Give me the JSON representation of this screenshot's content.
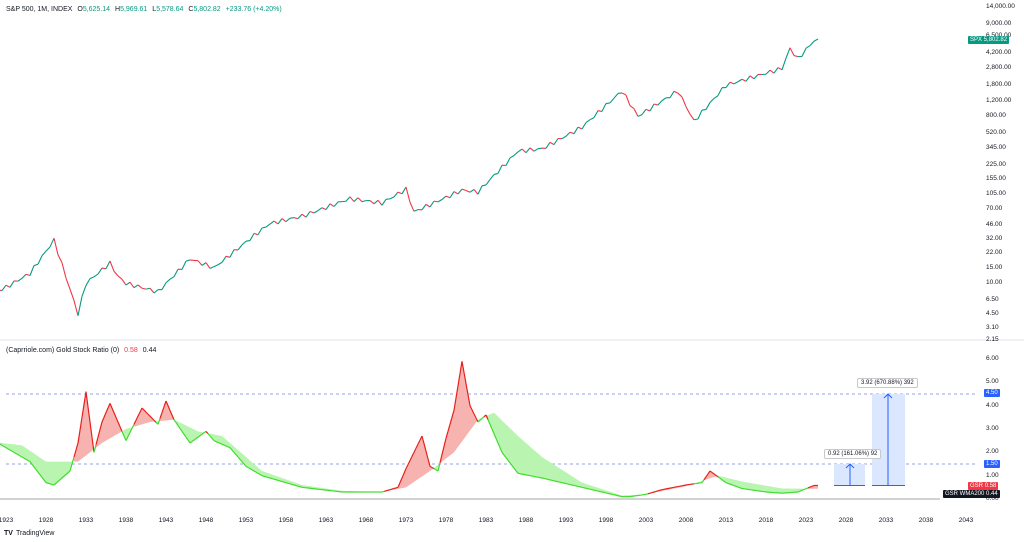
{
  "top_chart": {
    "symbol": "S&P 500, 1M, INDEX",
    "open_label": "O",
    "open": "5,625.14",
    "high_label": "H",
    "high": "5,969.61",
    "low_label": "L",
    "low": "5,578.64",
    "close_label": "C",
    "close": "5,802.82",
    "change": "+233.76 (+4.20%)",
    "price_tag_symbol": "SPX",
    "price_tag_value": "5,802.82",
    "y_ticks": [
      "14,000.00",
      "9,000.00",
      "6,500.00",
      "4,200.00",
      "2,800.00",
      "1,800.00",
      "1,200.00",
      "800.00",
      "520.00",
      "345.00",
      "225.00",
      "155.00",
      "105.00",
      "70.00",
      "46.00",
      "32.00",
      "22.00",
      "15.00",
      "10.00",
      "6.50",
      "4.50",
      "3.10"
    ]
  },
  "bottom_chart": {
    "title": "(Caprriole.com) Gold Stock Ratio (0)",
    "value1": "0.58",
    "value2": "0.44",
    "y_ticks": [
      "6.00",
      "5.00",
      "4.00",
      "3.00",
      "2.00",
      "1.00",
      "0.00"
    ],
    "y_tick_top": "2.15",
    "tag_level_high": "4.50",
    "tag_level_low": "1.50",
    "tag_gsr_label": "GSR",
    "tag_gsr_value": "0.58",
    "tag_wma_label": "GSR WMA200",
    "tag_wma_value": "0.44",
    "measure_small": "0.92 (161.06%) 92",
    "measure_large": "3.92 (670.88%) 392"
  },
  "x_axis": [
    "1923",
    "1928",
    "1933",
    "1938",
    "1943",
    "1948",
    "1953",
    "1958",
    "1963",
    "1968",
    "1973",
    "1978",
    "1983",
    "1988",
    "1993",
    "1998",
    "2003",
    "2008",
    "2013",
    "2018",
    "2023",
    "2028",
    "2033",
    "2038",
    "2043"
  ],
  "brand": "TradingView",
  "colors": {
    "up": "#089981",
    "down": "#f23645",
    "green_line": "#3fdc2c",
    "red_line": "#e8201a",
    "green_fill": "#b9f5b0",
    "red_fill": "#f7b3b0",
    "measure_blue": "#2962ff",
    "dash_line": "#7a83e6"
  },
  "chart_data": [
    {
      "type": "line",
      "title": "S&P 500, 1M, INDEX",
      "yscale": "log",
      "ylim": [
        3.1,
        14000
      ],
      "series": [
        {
          "name": "SPX",
          "x": [
            1920,
            1923,
            1926,
            1929,
            1932,
            1933,
            1936,
            1937,
            1938,
            1942,
            1946,
            1949,
            1954,
            1956,
            1960,
            1966,
            1970,
            1973,
            1974,
            1980,
            1982,
            1987,
            1990,
            1995,
            2000,
            2002,
            2007,
            2009,
            2013,
            2020,
            2021,
            2022,
            2024
          ],
          "values": [
            7,
            9,
            13,
            31,
            4.5,
            10,
            17,
            12,
            10,
            8,
            19,
            15,
            35,
            48,
            58,
            92,
            82,
            118,
            65,
            115,
            110,
            320,
            340,
            600,
            1550,
            800,
            1550,
            700,
            1800,
            2800,
            4700,
            3600,
            5800
          ]
        }
      ]
    },
    {
      "type": "line",
      "title": "(Caprriole.com) Gold Stock Ratio (0)",
      "ylim": [
        0,
        6.3
      ],
      "series": [
        {
          "name": "GSR",
          "x": [
            1920,
            1923,
            1926,
            1928,
            1929,
            1931,
            1932,
            1933,
            1934,
            1935,
            1936,
            1938,
            1940,
            1942,
            1943,
            1944,
            1946,
            1948,
            1949,
            1951,
            1953,
            1955,
            1960,
            1965,
            1970,
            1972,
            1973,
            1974,
            1975,
            1976,
            1977,
            1978,
            1979,
            1980,
            1981,
            1982,
            1983,
            1985,
            1987,
            1990,
            1995,
            2000,
            2001,
            2003,
            2005,
            2008,
            2010,
            2011,
            2012,
            2013,
            2015,
            2018,
            2020,
            2022,
            2024
          ],
          "values": [
            2.8,
            2.2,
            1.6,
            0.7,
            0.6,
            1.2,
            2.4,
            4.6,
            2.0,
            3.3,
            4.1,
            2.5,
            3.9,
            3.2,
            4.2,
            3.4,
            2.4,
            2.9,
            2.5,
            2.2,
            1.4,
            1.0,
            0.5,
            0.3,
            0.3,
            0.5,
            1.3,
            2.0,
            2.7,
            1.4,
            1.2,
            2.6,
            3.8,
            5.9,
            4.0,
            3.3,
            3.6,
            2.0,
            1.1,
            0.9,
            0.5,
            0.1,
            0.1,
            0.2,
            0.4,
            0.6,
            0.7,
            1.2,
            0.95,
            0.7,
            0.45,
            0.3,
            0.25,
            0.3,
            0.58
          ]
        },
        {
          "name": "GSR WMA200",
          "x": [
            1920,
            1925,
            1928,
            1932,
            1935,
            1938,
            1941,
            1944,
            1947,
            1950,
            1955,
            1960,
            1965,
            1970,
            1973,
            1976,
            1979,
            1982,
            1984,
            1987,
            1990,
            1995,
            2000,
            2003,
            2008,
            2012,
            2015,
            2020,
            2024
          ],
          "values": [
            2.5,
            2.3,
            1.6,
            1.6,
            2.4,
            3.0,
            3.3,
            3.4,
            2.9,
            2.7,
            1.2,
            0.6,
            0.35,
            0.3,
            0.5,
            1.2,
            2.0,
            3.4,
            3.7,
            2.7,
            1.8,
            0.7,
            0.15,
            0.2,
            0.55,
            1.0,
            0.75,
            0.45,
            0.44
          ]
        }
      ],
      "levels": [
        4.5,
        1.5
      ]
    }
  ]
}
